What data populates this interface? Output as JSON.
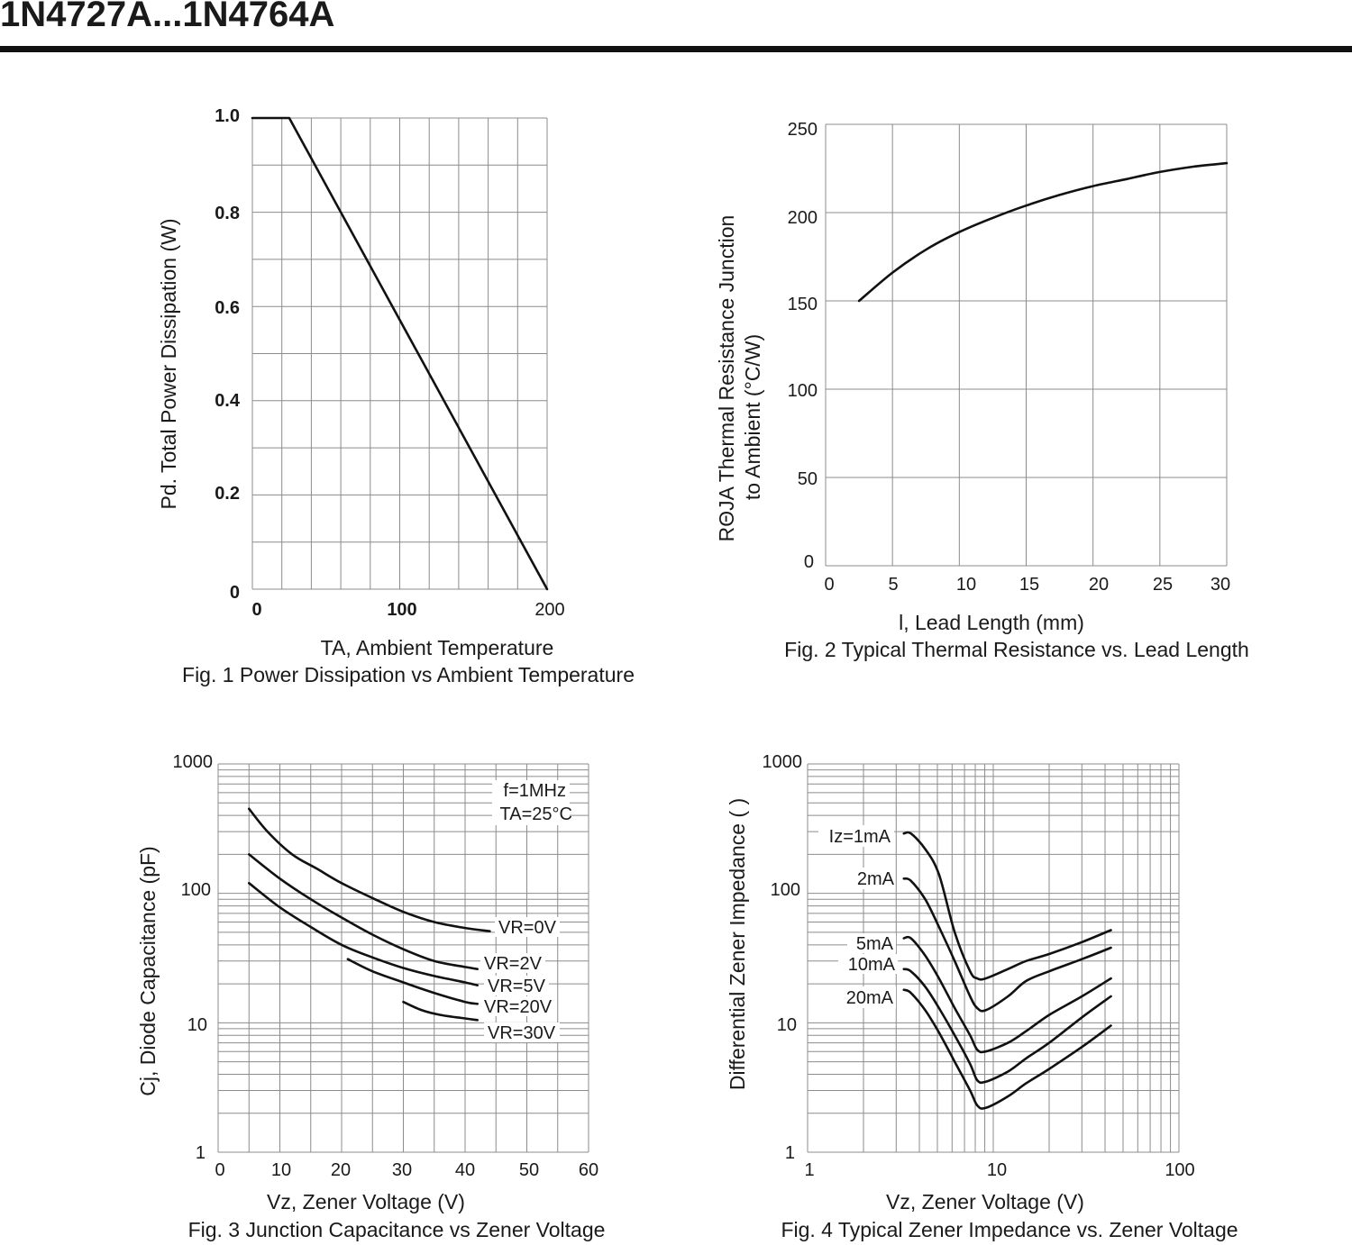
{
  "page": {
    "title": "1N4727A...1N4764A"
  },
  "chart_data": [
    {
      "type": "line",
      "xlim": [
        0,
        200
      ],
      "ylim": [
        0,
        1.0
      ],
      "grid": true,
      "x_ticks": [
        "0",
        "100",
        "200"
      ],
      "y_ticks": [
        "0",
        "0.2",
        "0.4",
        "0.6",
        "0.8",
        "1.0"
      ],
      "ylabel": "Pd. Total Power Dissipation (W)",
      "xlabel": "TA, Ambient Temperature",
      "caption": "Fig. 1 Power Dissipation vs Ambient Temperature",
      "series": [
        {
          "points": [
            [
              0,
              1.0
            ],
            [
              25,
              1.0
            ],
            [
              200,
              0
            ]
          ]
        }
      ]
    },
    {
      "type": "line",
      "xlim": [
        0,
        30
      ],
      "ylim": [
        0,
        250
      ],
      "grid": true,
      "x_ticks": [
        "0",
        "5",
        "10",
        "15",
        "20",
        "25",
        "30"
      ],
      "y_ticks": [
        "0",
        "50",
        "100",
        "150",
        "200",
        "250"
      ],
      "ylabel_line1": "RΘJA  Thermal Resistance Junction",
      "ylabel_line2": "to Ambient (°C/W)",
      "xlabel": "l, Lead Length (mm)",
      "caption": "Fig. 2 Typical Thermal Resistance vs. Lead Length",
      "series": [
        {
          "points": [
            [
              2.5,
              150
            ],
            [
              5,
              166
            ],
            [
              7.5,
              179
            ],
            [
              10,
              189
            ],
            [
              12.5,
              197
            ],
            [
              15,
              204
            ],
            [
              17.5,
              210
            ],
            [
              20,
              215
            ],
            [
              22.5,
              219
            ],
            [
              25,
              223
            ],
            [
              27.5,
              226
            ],
            [
              30,
              228
            ]
          ]
        }
      ]
    },
    {
      "type": "line",
      "xlim": [
        0,
        60
      ],
      "ylim": [
        1,
        1000
      ],
      "yscale": "log",
      "grid": true,
      "x_ticks": [
        "0",
        "10",
        "20",
        "30",
        "40",
        "50",
        "60"
      ],
      "y_ticks": [
        "1",
        "10",
        "100",
        "1000"
      ],
      "ylabel": "Cj, Diode Capacitance (pF)",
      "xlabel": "Vz, Zener Voltage (V)",
      "caption": "Fig. 3 Junction Capacitance vs Zener Voltage",
      "notes": [
        "f=1MHz",
        "TA=25°C"
      ],
      "series": [
        {
          "name": "VR=0V",
          "points": [
            [
              5,
              450
            ],
            [
              8,
              300
            ],
            [
              12,
              200
            ],
            [
              16,
              155
            ],
            [
              20,
              120
            ],
            [
              25,
              92
            ],
            [
              30,
              72
            ],
            [
              35,
              60
            ],
            [
              40,
              54
            ],
            [
              44,
              51
            ]
          ]
        },
        {
          "name": "VR=2V",
          "points": [
            [
              5,
              200
            ],
            [
              10,
              130
            ],
            [
              15,
              90
            ],
            [
              20,
              65
            ],
            [
              25,
              48
            ],
            [
              30,
              37
            ],
            [
              35,
              30
            ],
            [
              40,
              27
            ],
            [
              42,
              26
            ]
          ]
        },
        {
          "name": "VR=5V",
          "points": [
            [
              5,
              120
            ],
            [
              10,
              78
            ],
            [
              15,
              55
            ],
            [
              20,
              40
            ],
            [
              25,
              32
            ],
            [
              30,
              26.5
            ],
            [
              35,
              23
            ],
            [
              40,
              20.5
            ],
            [
              42,
              19.5
            ]
          ]
        },
        {
          "name": "VR=20V",
          "points": [
            [
              21,
              31
            ],
            [
              25,
              25
            ],
            [
              30,
              20.5
            ],
            [
              35,
              17
            ],
            [
              40,
              14.5
            ],
            [
              42,
              14
            ]
          ]
        },
        {
          "name": "VR=30V",
          "points": [
            [
              30,
              14.5
            ],
            [
              33,
              12.5
            ],
            [
              36,
              11.5
            ],
            [
              40,
              10.8
            ],
            [
              42,
              10.5
            ]
          ]
        }
      ]
    },
    {
      "type": "line",
      "xlim": [
        1,
        100
      ],
      "ylim": [
        1,
        1000
      ],
      "xscale": "log",
      "yscale": "log",
      "grid": true,
      "x_ticks": [
        "1",
        "10",
        "100"
      ],
      "y_ticks": [
        "1",
        "10",
        "100",
        "1000"
      ],
      "ylabel": "Differential Zener Impedance (  )",
      "xlabel": "Vz, Zener Voltage (V)",
      "caption": "Fig. 4 Typical Zener Impedance vs. Zener Voltage",
      "series": [
        {
          "name": "Iz=1mA",
          "points": [
            [
              3.3,
              290
            ],
            [
              3.6,
              290
            ],
            [
              4.3,
              220
            ],
            [
              5.1,
              140
            ],
            [
              6.2,
              50
            ],
            [
              7.5,
              25
            ],
            [
              8.2,
              22
            ],
            [
              9.1,
              22
            ],
            [
              12,
              26
            ],
            [
              15,
              30
            ],
            [
              20,
              34
            ],
            [
              30,
              42
            ],
            [
              43,
              52
            ]
          ]
        },
        {
          "name": "2mA",
          "points": [
            [
              3.3,
              130
            ],
            [
              3.6,
              125
            ],
            [
              4.3,
              90
            ],
            [
              5.1,
              55
            ],
            [
              6.2,
              30
            ],
            [
              7.5,
              16
            ],
            [
              8.2,
              13
            ],
            [
              9.1,
              12.5
            ],
            [
              12,
              16
            ],
            [
              15,
              21
            ],
            [
              20,
              25
            ],
            [
              30,
              31
            ],
            [
              43,
              38
            ]
          ]
        },
        {
          "name": "5mA",
          "points": [
            [
              3.3,
              45
            ],
            [
              3.6,
              45
            ],
            [
              4.3,
              33
            ],
            [
              5.1,
              22
            ],
            [
              6.2,
              13
            ],
            [
              7.5,
              8
            ],
            [
              8.2,
              6.2
            ],
            [
              9.1,
              6
            ],
            [
              12,
              7
            ],
            [
              15,
              8.6
            ],
            [
              20,
              11.5
            ],
            [
              30,
              16
            ],
            [
              43,
              22
            ]
          ]
        },
        {
          "name": "10mA",
          "points": [
            [
              3.3,
              26
            ],
            [
              3.6,
              25
            ],
            [
              4.3,
              19
            ],
            [
              5.1,
              13
            ],
            [
              6.2,
              8
            ],
            [
              7.5,
              4.8
            ],
            [
              8.2,
              3.6
            ],
            [
              9.1,
              3.5
            ],
            [
              12,
              4.2
            ],
            [
              15,
              5.3
            ],
            [
              20,
              7
            ],
            [
              30,
              11
            ],
            [
              43,
              16
            ]
          ]
        },
        {
          "name": "20mA",
          "points": [
            [
              3.3,
              18
            ],
            [
              3.6,
              17
            ],
            [
              4.3,
              12.5
            ],
            [
              5.1,
              8.4
            ],
            [
              6.2,
              5
            ],
            [
              7.5,
              3
            ],
            [
              8.2,
              2.3
            ],
            [
              9.1,
              2.2
            ],
            [
              12,
              2.7
            ],
            [
              15,
              3.4
            ],
            [
              20,
              4.4
            ],
            [
              30,
              6.5
            ],
            [
              43,
              9.5
            ]
          ]
        }
      ]
    }
  ]
}
